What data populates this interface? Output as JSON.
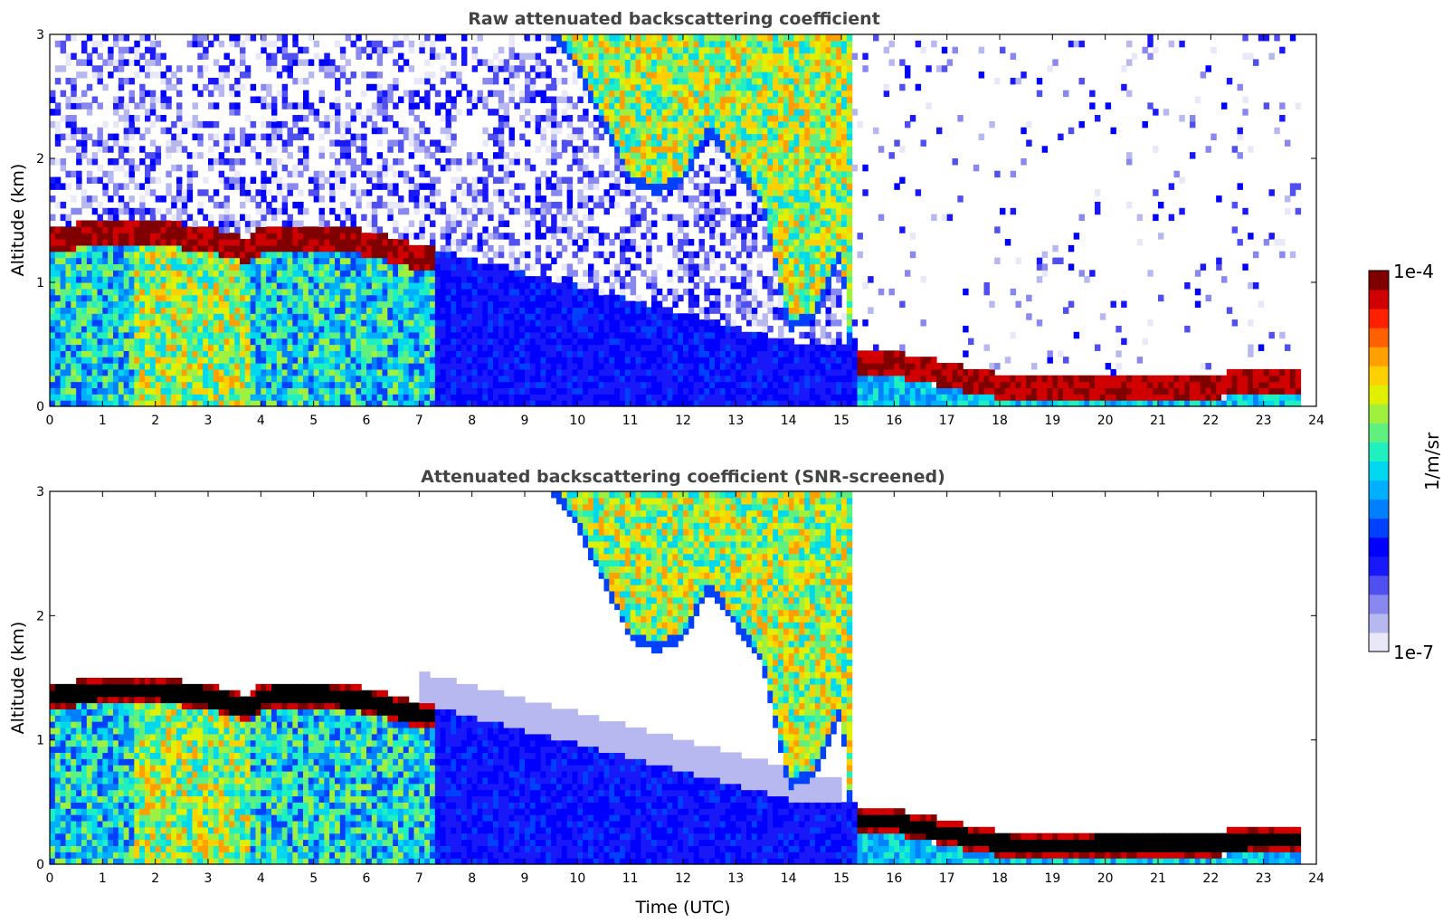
{
  "chart_data": [
    {
      "type": "heatmap",
      "title": "Raw attenuated backscattering coefficient",
      "xlabel": "",
      "ylabel": "Altitude (km)",
      "xlim": [
        0,
        24
      ],
      "ylim": [
        0,
        3
      ],
      "xticks": [
        "0",
        "1",
        "2",
        "3",
        "4",
        "5",
        "6",
        "7",
        "8",
        "9",
        "10",
        "11",
        "12",
        "13",
        "14",
        "15",
        "16",
        "17",
        "18",
        "19",
        "20",
        "21",
        "22",
        "23",
        "24"
      ],
      "yticks": [
        "0",
        "1",
        "2",
        "3"
      ],
      "data_end_hour": 23.7,
      "features": {
        "boundary_layer_top_km": [
          [
            0,
            1.45
          ],
          [
            1,
            1.5
          ],
          [
            2,
            1.5
          ],
          [
            3,
            1.45
          ],
          [
            3.8,
            1.35
          ],
          [
            4,
            1.45
          ],
          [
            5,
            1.47
          ],
          [
            6,
            1.42
          ],
          [
            7,
            1.3
          ]
        ],
        "ice_cloud_base_km": [
          [
            9.5,
            3
          ],
          [
            10,
            2.7
          ],
          [
            11,
            1.8
          ],
          [
            11.5,
            1.7
          ],
          [
            12,
            1.8
          ],
          [
            12.5,
            2.2
          ],
          [
            13,
            1.9
          ],
          [
            13.5,
            1.6
          ],
          [
            14,
            0.6
          ],
          [
            14.5,
            0.7
          ],
          [
            15,
            1.2
          ],
          [
            15.2,
            0.3
          ]
        ],
        "low_cloud_km": [
          [
            15.3,
            0.35
          ],
          [
            16,
            0.35
          ],
          [
            17,
            0.25
          ],
          [
            18,
            0.17
          ],
          [
            19,
            0.15
          ],
          [
            20,
            0.17
          ],
          [
            21,
            0.17
          ],
          [
            22,
            0.17
          ],
          [
            23,
            0.19
          ],
          [
            23.7,
            0.2
          ]
        ],
        "noise": "high"
      }
    },
    {
      "type": "heatmap",
      "title": "Attenuated backscattering coefficient (SNR-screened)",
      "xlabel": "Time (UTC)",
      "ylabel": "Altitude (km)",
      "xlim": [
        0,
        24
      ],
      "ylim": [
        0,
        3
      ],
      "xticks": [
        "0",
        "1",
        "2",
        "3",
        "4",
        "5",
        "6",
        "7",
        "8",
        "9",
        "10",
        "11",
        "12",
        "13",
        "14",
        "15",
        "16",
        "17",
        "18",
        "19",
        "20",
        "21",
        "22",
        "23",
        "24"
      ],
      "yticks": [
        "0",
        "1",
        "2",
        "3"
      ],
      "data_end_hour": 23.7,
      "features": {
        "boundary_layer_top_km": [
          [
            0,
            1.45
          ],
          [
            1,
            1.5
          ],
          [
            2,
            1.5
          ],
          [
            3,
            1.45
          ],
          [
            3.8,
            1.35
          ],
          [
            4,
            1.45
          ],
          [
            5,
            1.47
          ],
          [
            6,
            1.42
          ],
          [
            7,
            1.3
          ]
        ],
        "ice_cloud_base_km": [
          [
            9.5,
            3
          ],
          [
            10,
            2.7
          ],
          [
            11,
            1.8
          ],
          [
            11.5,
            1.7
          ],
          [
            12,
            1.8
          ],
          [
            12.5,
            2.2
          ],
          [
            13,
            1.9
          ],
          [
            13.5,
            1.6
          ],
          [
            14,
            0.6
          ],
          [
            14.5,
            0.7
          ],
          [
            15,
            1.2
          ],
          [
            15.2,
            0.3
          ]
        ],
        "low_cloud_km": [
          [
            15.3,
            0.35
          ],
          [
            16,
            0.35
          ],
          [
            17,
            0.25
          ],
          [
            18,
            0.17
          ],
          [
            19,
            0.15
          ],
          [
            20,
            0.17
          ],
          [
            21,
            0.17
          ],
          [
            22,
            0.17
          ],
          [
            23,
            0.19
          ],
          [
            23.7,
            0.2
          ]
        ],
        "noise": "screened",
        "saturated_color": "#000000"
      }
    }
  ],
  "colorbar": {
    "max_label": "1e-4",
    "min_label": "1e-7",
    "unit_label": "1/m/sr",
    "colors": [
      "#e8e8f8",
      "#b8b8f0",
      "#8888f0",
      "#5050f0",
      "#1818f8",
      "#0000ff",
      "#0040ff",
      "#0080ff",
      "#00b0ff",
      "#00d8f0",
      "#20f0c0",
      "#60f080",
      "#a0f040",
      "#e0f000",
      "#ffd000",
      "#ffa000",
      "#ff6000",
      "#ff2000",
      "#d00000",
      "#800000"
    ]
  }
}
